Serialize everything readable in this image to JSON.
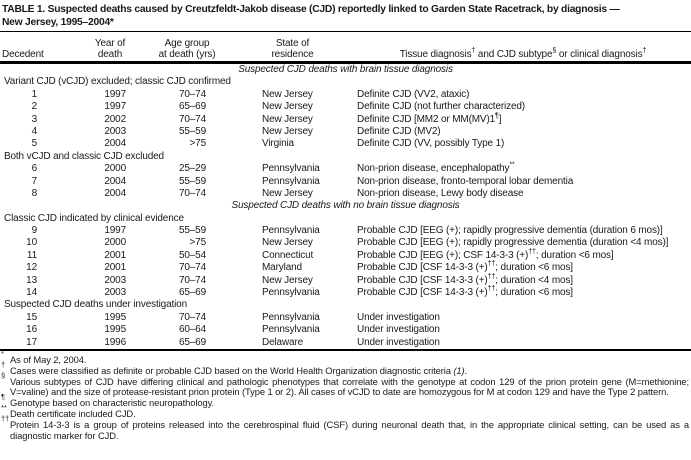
{
  "table": {
    "title_line1": "TABLE 1. Suspected deaths caused by Creutzfeldt-Jakob disease (CJD) reportedly linked to Garden State Racetrack, by diagnosis —",
    "title_line2": "New Jersey, 1995–2004*",
    "header": {
      "decedent": "Decedent",
      "year_line1": "Year of",
      "year_line2": "death",
      "age_line1": "Age group",
      "age_line2": "at death (yrs)",
      "state_line1": "State of",
      "state_line2": "residence",
      "diagnosis": "Tissue diagnosis^{†} and CJD subtype^{§} or clinical diagnosis^{†}"
    },
    "sections": [
      {
        "heading": "Suspected CJD deaths with brain tissue diagnosis",
        "groups": [
          {
            "label": "Variant CJD (vCJD) excluded; classic CJD confirmed",
            "rows": [
              [
                "1",
                "1997",
                "70–74",
                "New Jersey",
                "Definite CJD (VV2, ataxic)"
              ],
              [
                "2",
                "1997",
                "65–69",
                "New Jersey",
                "Definite CJD (not further characterized)"
              ],
              [
                "3",
                "2002",
                "70–74",
                "New Jersey",
                "Definite CJD [MM2 or MM(MV)1^{¶}]"
              ],
              [
                "4",
                "2003",
                "55–59",
                "New Jersey",
                "Definite CJD (MV2)"
              ],
              [
                "5",
                "2004",
                ">75",
                "Virginia",
                "Definite CJD (VV, possibly Type 1)"
              ]
            ]
          },
          {
            "label": "Both vCJD and classic CJD excluded",
            "rows": [
              [
                "6",
                "2000",
                "25–29",
                "Pennsylvania",
                "Non-prion disease, encephalopathy^{**}"
              ],
              [
                "7",
                "2004",
                "55–59",
                "Pennsylvania",
                "Non-prion disease, fronto-temporal lobar dementia"
              ],
              [
                "8",
                "2004",
                "70–74",
                "New Jersey",
                "Non-prion disease, Lewy body disease"
              ]
            ]
          }
        ]
      },
      {
        "heading": "Suspected CJD deaths with no brain tissue diagnosis",
        "groups": [
          {
            "label": "Classic CJD indicated by clinical evidence",
            "rows": [
              [
                "9",
                "1997",
                "55–59",
                "Pennsylvania",
                "Probable CJD [EEG (+); rapidly progressive dementia (duration 6 mos)]"
              ],
              [
                "10",
                "2000",
                ">75",
                "New Jersey",
                "Probable CJD [EEG (+); rapidly progressive dementia (duration <4 mos)]"
              ],
              [
                "11",
                "2001",
                "50–54",
                "Connecticut",
                "Probable CJD [EEG (+); CSF 14-3-3 (+)^{††}; duration <6 mos]"
              ],
              [
                "12",
                "2001",
                "70–74",
                "Maryland",
                "Probable CJD [CSF 14-3-3 (+)^{††}; duration <6 mos]"
              ],
              [
                "13",
                "2003",
                "70–74",
                "New Jersey",
                "Probable CJD [CSF 14-3-3 (+)^{††}; duration <4 mos]"
              ],
              [
                "14",
                "2003",
                "65–69",
                "Pennsylvania",
                "Probable CJD [CSF 14-3-3 (+)^{††}; duration <6 mos]"
              ]
            ]
          },
          {
            "label": "Suspected CJD deaths under investigation",
            "rows": [
              [
                "15",
                "1995",
                "70–74",
                "Pennsylvania",
                "Under investigation"
              ],
              [
                "16",
                "1995",
                "60–64",
                "Pennsylvania",
                "Under investigation"
              ],
              [
                "17",
                "1996",
                "65–69",
                "Delaware",
                "Under investigation"
              ]
            ]
          }
        ]
      }
    ],
    "footnotes": [
      {
        "marker": "*",
        "text": "As of May 2, 2004."
      },
      {
        "marker": "†",
        "text": "Cases were classified as definite or probable CJD based on the World Health Organization diagnostic criteria {i}(1){/i}."
      },
      {
        "marker": "§",
        "text": "Various subtypes of CJD have differing clinical and pathologic phenotypes that correlate with the genotype at codon 129 of the prion protein gene (M=methionine; V=valine) and the size of protease-resistant prion protein (Type 1 or 2). All cases of vCJD to date are homozygous for M at codon 129 and have the Type 2 pattern."
      },
      {
        "marker": "¶",
        "text": "Genotype based on characteristic neuropathology."
      },
      {
        "marker": "**",
        "text": "Death certificate included CJD."
      },
      {
        "marker": "††",
        "text": "Protein 14-3-3 is a group of proteins released into the cerebrospinal fluid (CSF) during neuronal death that, in the appropriate clinical setting, can be used as a diagnostic marker for CJD."
      }
    ]
  }
}
